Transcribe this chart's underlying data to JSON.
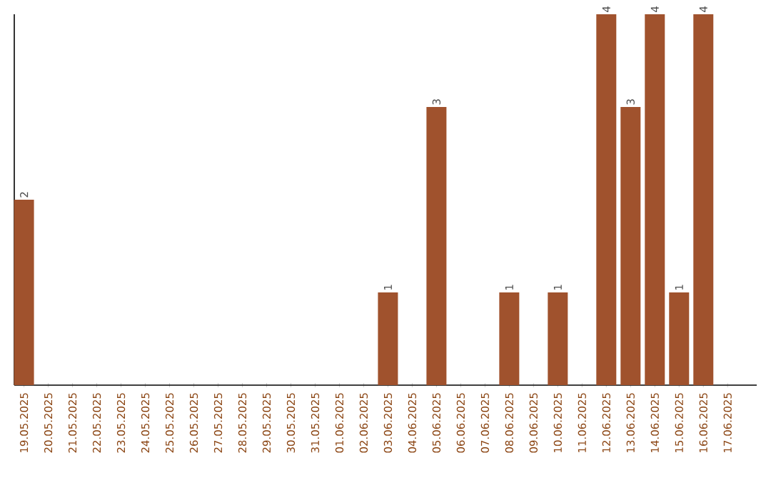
{
  "chart_data": {
    "type": "bar",
    "categories": [
      "19.05.2025",
      "20.05.2025",
      "21.05.2025",
      "22.05.2025",
      "23.05.2025",
      "24.05.2025",
      "25.05.2025",
      "26.05.2025",
      "27.05.2025",
      "28.05.2025",
      "29.05.2025",
      "30.05.2025",
      "31.05.2025",
      "01.06.2025",
      "02.06.2025",
      "03.06.2025",
      "04.06.2025",
      "05.06.2025",
      "06.06.2025",
      "07.06.2025",
      "08.06.2025",
      "09.06.2025",
      "10.06.2025",
      "11.06.2025",
      "12.06.2025",
      "13.06.2025",
      "14.06.2025",
      "15.06.2025",
      "16.06.2025",
      "17.06.2025"
    ],
    "values": [
      2,
      0,
      0,
      0,
      0,
      0,
      0,
      0,
      0,
      0,
      0,
      0,
      0,
      0,
      0,
      1,
      0,
      3,
      0,
      0,
      1,
      0,
      1,
      0,
      4,
      3,
      4,
      1,
      4,
      0
    ],
    "value_labels": [
      "2",
      null,
      null,
      null,
      null,
      null,
      null,
      null,
      null,
      null,
      null,
      null,
      null,
      null,
      null,
      "1",
      null,
      "3",
      null,
      null,
      "1",
      null,
      "1",
      null,
      "4",
      "3",
      "4",
      "1",
      "4",
      null
    ],
    "color": "#a0522d",
    "tick_labels": "x",
    "grid": false
  }
}
